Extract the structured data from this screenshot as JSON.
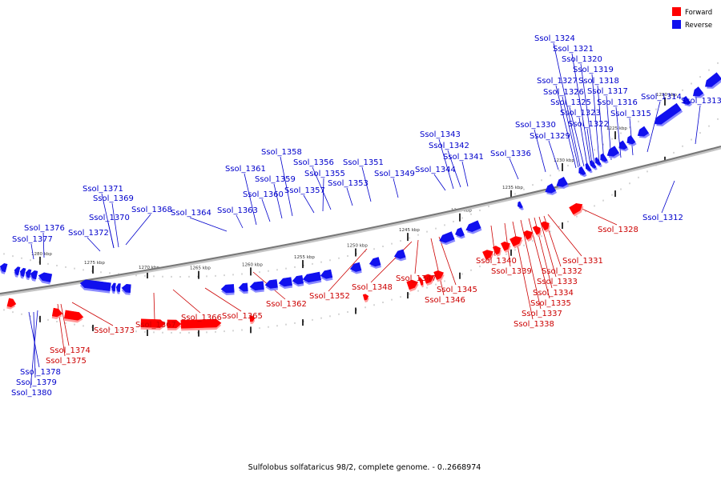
{
  "caption": "Sulfolobus solfataricus 98/2, complete genome. - 0..2668974",
  "legend": [
    {
      "label": "Forward",
      "color": "#ff0000"
    },
    {
      "label": "Reverse",
      "color": "#1010ee"
    }
  ],
  "colors": {
    "forward": "#ff0000",
    "reverse": "#1010ee",
    "forward_label": "#cc0000",
    "reverse_label": "#0000cc",
    "backbone": "#777777"
  },
  "kbp_ticks": [
    "1220 kbp",
    "1225 kbp",
    "1230 kbp",
    "1235 kbp",
    "1240 kbp",
    "1245 kbp",
    "1250 kbp",
    "1255 kbp",
    "1260 kbp",
    "1265 kbp",
    "1270 kbp",
    "1275 kbp",
    "1280 kbp"
  ],
  "reverse_genes": [
    "Ssol_1312",
    "Ssol_1313",
    "Ssol_1314",
    "Ssol_1315",
    "Ssol_1316",
    "Ssol_1317",
    "Ssol_1318",
    "Ssol_1319",
    "Ssol_1320",
    "Ssol_1321",
    "Ssol_1322",
    "Ssol_1323",
    "Ssol_1324",
    "Ssol_1325",
    "Ssol_1326",
    "Ssol_1327",
    "Ssol_1329",
    "Ssol_1330",
    "Ssol_1336",
    "Ssol_1341",
    "Ssol_1342",
    "Ssol_1343",
    "Ssol_1344",
    "Ssol_1349",
    "Ssol_1351",
    "Ssol_1353",
    "Ssol_1355",
    "Ssol_1356",
    "Ssol_1357",
    "Ssol_1358",
    "Ssol_1359",
    "Ssol_1360",
    "Ssol_1361",
    "Ssol_1363",
    "Ssol_1364",
    "Ssol_1368",
    "Ssol_1369",
    "Ssol_1370",
    "Ssol_1371",
    "Ssol_1372",
    "Ssol_1376",
    "Ssol_1377",
    "Ssol_1378",
    "Ssol_1379",
    "Ssol_1380"
  ],
  "forward_genes": [
    "Ssol_1328",
    "Ssol_1331",
    "Ssol_1332",
    "Ssol_1333",
    "Ssol_1334",
    "Ssol_1335",
    "Ssol_1337",
    "Ssol_1338",
    "Ssol_1339",
    "Ssol_1340",
    "Ssol_1345",
    "Ssol_1346",
    "Ssol_1347",
    "Ssol_1348",
    "Ssol_1352",
    "Ssol_1362",
    "Ssol_1365",
    "Ssol_1366",
    "Ssol_1367",
    "Ssol_1373",
    "Ssol_1374",
    "Ssol_1375"
  ]
}
